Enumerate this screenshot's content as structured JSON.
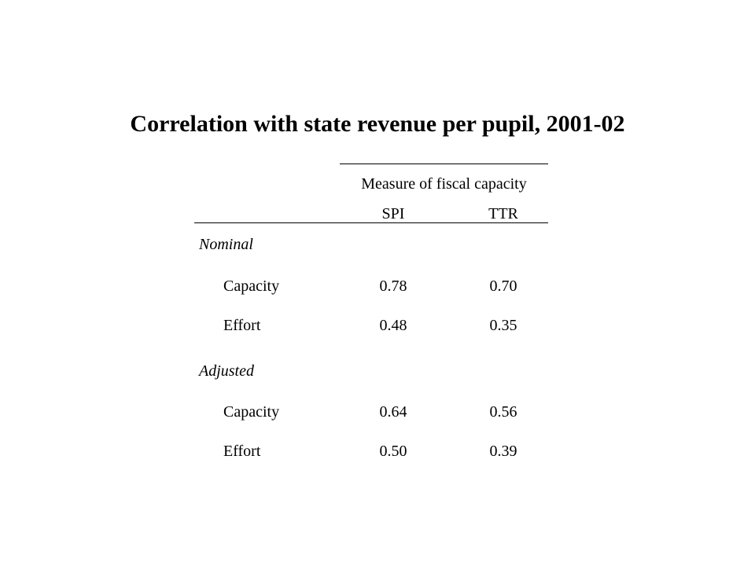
{
  "title": "Correlation with state revenue per pupil, 2001-02",
  "table": {
    "group_header": "Measure of fiscal capacity",
    "columns": [
      "SPI",
      "TTR"
    ],
    "sections": [
      {
        "label": "Nominal",
        "rows": [
          {
            "label": "Capacity",
            "values": [
              "0.78",
              "0.70"
            ]
          },
          {
            "label": "Effort",
            "values": [
              "0.48",
              "0.35"
            ]
          }
        ]
      },
      {
        "label": "Adjusted",
        "rows": [
          {
            "label": "Capacity",
            "values": [
              "0.64",
              "0.56"
            ]
          },
          {
            "label": "Effort",
            "values": [
              "0.50",
              "0.39"
            ]
          }
        ]
      }
    ]
  }
}
